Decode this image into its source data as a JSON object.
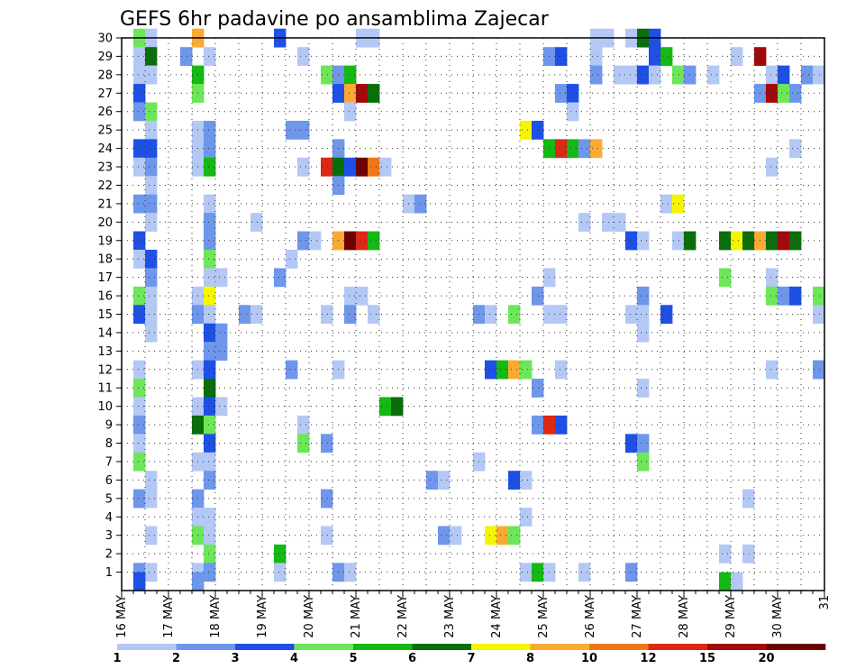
{
  "chart_data": {
    "type": "heatmap",
    "title": "GEFS 6hr padavine po ansamblima Zajecar",
    "xlabel": "",
    "ylabel": "",
    "x_ticks": [
      "16 MAY",
      "17 MAY",
      "18 MAY",
      "19 MAY",
      "20 MAY",
      "21 MAY",
      "22 MAY",
      "23 MAY",
      "24 MAY",
      "25 MAY",
      "26 MAY",
      "27 MAY",
      "28 MAY",
      "29 MAY",
      "30 MAY",
      "31"
    ],
    "y_ticks": [
      1,
      2,
      3,
      4,
      5,
      6,
      7,
      8,
      9,
      10,
      11,
      12,
      13,
      14,
      15,
      16,
      17,
      18,
      19,
      20,
      21,
      22,
      23,
      24,
      25,
      26,
      27,
      28,
      29,
      30
    ],
    "x_range_steps": [
      0,
      60
    ],
    "y_range_members": [
      0,
      30
    ],
    "colorbar": {
      "labels": [
        "1",
        "2",
        "3",
        "4",
        "5",
        "6",
        "7",
        "8",
        "10",
        "12",
        "15",
        "20"
      ],
      "colors": [
        "#b4c8f5",
        "#6e96eb",
        "#1e50e6",
        "#6ee65a",
        "#14b914",
        "#0a6e0a",
        "#f5f500",
        "#faaa32",
        "#f07814",
        "#dc2814",
        "#a00a0a",
        "#6e0000"
      ]
    },
    "cells_format": "[member, time_step_index (6h from 16 MAY 00z), class_index into colorbar.colors]",
    "cells": [
      [
        30,
        1,
        3
      ],
      [
        30,
        2,
        0
      ],
      [
        30,
        6,
        7
      ],
      [
        30,
        13,
        2
      ],
      [
        30,
        20,
        0
      ],
      [
        30,
        21,
        0
      ],
      [
        30,
        40,
        0
      ],
      [
        30,
        41,
        0
      ],
      [
        30,
        43,
        0
      ],
      [
        30,
        44,
        5
      ],
      [
        30,
        45,
        2
      ],
      [
        29,
        1,
        0
      ],
      [
        29,
        2,
        5
      ],
      [
        29,
        5,
        1
      ],
      [
        29,
        7,
        0
      ],
      [
        29,
        15,
        0
      ],
      [
        29,
        36,
        1
      ],
      [
        29,
        37,
        2
      ],
      [
        29,
        40,
        0
      ],
      [
        29,
        45,
        2
      ],
      [
        29,
        46,
        4
      ],
      [
        29,
        52,
        0
      ],
      [
        29,
        54,
        10
      ],
      [
        28,
        1,
        0
      ],
      [
        28,
        2,
        0
      ],
      [
        28,
        6,
        4
      ],
      [
        28,
        17,
        3
      ],
      [
        28,
        18,
        1
      ],
      [
        28,
        19,
        4
      ],
      [
        28,
        40,
        1
      ],
      [
        28,
        42,
        0
      ],
      [
        28,
        43,
        0
      ],
      [
        28,
        44,
        2
      ],
      [
        28,
        45,
        0
      ],
      [
        28,
        47,
        3
      ],
      [
        28,
        48,
        1
      ],
      [
        28,
        50,
        0
      ],
      [
        28,
        55,
        0
      ],
      [
        28,
        56,
        2
      ],
      [
        28,
        58,
        1
      ],
      [
        28,
        59,
        0
      ],
      [
        27,
        1,
        2
      ],
      [
        27,
        6,
        3
      ],
      [
        27,
        18,
        2
      ],
      [
        27,
        19,
        7
      ],
      [
        27,
        20,
        10
      ],
      [
        27,
        21,
        5
      ],
      [
        27,
        37,
        1
      ],
      [
        27,
        38,
        2
      ],
      [
        27,
        54,
        1
      ],
      [
        27,
        55,
        10
      ],
      [
        27,
        56,
        3
      ],
      [
        27,
        57,
        1
      ],
      [
        26,
        1,
        1
      ],
      [
        26,
        2,
        3
      ],
      [
        26,
        19,
        0
      ],
      [
        26,
        38,
        0
      ],
      [
        25,
        2,
        0
      ],
      [
        25,
        6,
        0
      ],
      [
        25,
        7,
        1
      ],
      [
        25,
        14,
        1
      ],
      [
        25,
        15,
        1
      ],
      [
        25,
        34,
        6
      ],
      [
        25,
        35,
        2
      ],
      [
        24,
        1,
        2
      ],
      [
        24,
        2,
        2
      ],
      [
        24,
        6,
        0
      ],
      [
        24,
        7,
        1
      ],
      [
        24,
        18,
        1
      ],
      [
        24,
        36,
        4
      ],
      [
        24,
        37,
        9
      ],
      [
        24,
        38,
        4
      ],
      [
        24,
        39,
        1
      ],
      [
        24,
        40,
        7
      ],
      [
        24,
        57,
        0
      ],
      [
        23,
        1,
        0
      ],
      [
        23,
        2,
        1
      ],
      [
        23,
        6,
        0
      ],
      [
        23,
        7,
        4
      ],
      [
        23,
        15,
        0
      ],
      [
        23,
        17,
        9
      ],
      [
        23,
        18,
        5
      ],
      [
        23,
        19,
        2
      ],
      [
        23,
        20,
        11
      ],
      [
        23,
        21,
        8
      ],
      [
        23,
        22,
        0
      ],
      [
        23,
        55,
        0
      ],
      [
        22,
        2,
        0
      ],
      [
        22,
        18,
        1
      ],
      [
        21,
        1,
        1
      ],
      [
        21,
        2,
        1
      ],
      [
        21,
        7,
        0
      ],
      [
        21,
        24,
        0
      ],
      [
        21,
        25,
        1
      ],
      [
        21,
        46,
        0
      ],
      [
        21,
        47,
        6
      ],
      [
        20,
        2,
        0
      ],
      [
        20,
        7,
        1
      ],
      [
        20,
        11,
        0
      ],
      [
        20,
        39,
        0
      ],
      [
        20,
        41,
        0
      ],
      [
        20,
        42,
        0
      ],
      [
        19,
        1,
        2
      ],
      [
        19,
        7,
        1
      ],
      [
        19,
        15,
        1
      ],
      [
        19,
        16,
        0
      ],
      [
        19,
        18,
        7
      ],
      [
        19,
        19,
        11
      ],
      [
        19,
        20,
        9
      ],
      [
        19,
        21,
        4
      ],
      [
        19,
        43,
        2
      ],
      [
        19,
        44,
        0
      ],
      [
        19,
        47,
        0
      ],
      [
        19,
        48,
        5
      ],
      [
        19,
        51,
        5
      ],
      [
        19,
        52,
        6
      ],
      [
        19,
        53,
        5
      ],
      [
        19,
        54,
        7
      ],
      [
        19,
        55,
        5
      ],
      [
        19,
        56,
        10
      ],
      [
        19,
        57,
        5
      ],
      [
        18,
        1,
        0
      ],
      [
        18,
        2,
        2
      ],
      [
        18,
        7,
        3
      ],
      [
        18,
        14,
        0
      ],
      [
        17,
        2,
        1
      ],
      [
        17,
        7,
        0
      ],
      [
        17,
        8,
        0
      ],
      [
        17,
        13,
        1
      ],
      [
        17,
        36,
        0
      ],
      [
        17,
        51,
        3
      ],
      [
        17,
        55,
        0
      ],
      [
        16,
        1,
        3
      ],
      [
        16,
        2,
        0
      ],
      [
        16,
        6,
        0
      ],
      [
        16,
        7,
        6
      ],
      [
        16,
        19,
        0
      ],
      [
        16,
        20,
        0
      ],
      [
        16,
        35,
        1
      ],
      [
        16,
        44,
        1
      ],
      [
        16,
        55,
        3
      ],
      [
        16,
        56,
        1
      ],
      [
        16,
        57,
        2
      ],
      [
        16,
        59,
        3
      ],
      [
        15,
        1,
        2
      ],
      [
        15,
        2,
        0
      ],
      [
        15,
        6,
        1
      ],
      [
        15,
        7,
        0
      ],
      [
        15,
        10,
        1
      ],
      [
        15,
        11,
        0
      ],
      [
        15,
        17,
        0
      ],
      [
        15,
        19,
        1
      ],
      [
        15,
        21,
        0
      ],
      [
        15,
        30,
        1
      ],
      [
        15,
        31,
        0
      ],
      [
        15,
        33,
        3
      ],
      [
        15,
        36,
        0
      ],
      [
        15,
        37,
        0
      ],
      [
        15,
        43,
        0
      ],
      [
        15,
        44,
        0
      ],
      [
        15,
        46,
        2
      ],
      [
        15,
        59,
        0
      ],
      [
        14,
        2,
        0
      ],
      [
        14,
        7,
        2
      ],
      [
        14,
        8,
        1
      ],
      [
        14,
        44,
        0
      ],
      [
        13,
        7,
        1
      ],
      [
        13,
        8,
        1
      ],
      [
        12,
        1,
        0
      ],
      [
        12,
        6,
        0
      ],
      [
        12,
        7,
        2
      ],
      [
        12,
        14,
        1
      ],
      [
        12,
        18,
        0
      ],
      [
        12,
        31,
        2
      ],
      [
        12,
        32,
        4
      ],
      [
        12,
        33,
        7
      ],
      [
        12,
        34,
        3
      ],
      [
        12,
        37,
        0
      ],
      [
        12,
        55,
        0
      ],
      [
        12,
        59,
        1
      ],
      [
        11,
        1,
        3
      ],
      [
        11,
        7,
        5
      ],
      [
        11,
        35,
        1
      ],
      [
        11,
        44,
        0
      ],
      [
        10,
        1,
        0
      ],
      [
        10,
        6,
        0
      ],
      [
        10,
        7,
        2
      ],
      [
        10,
        8,
        0
      ],
      [
        10,
        22,
        4
      ],
      [
        10,
        23,
        5
      ],
      [
        9,
        1,
        1
      ],
      [
        9,
        6,
        5
      ],
      [
        9,
        7,
        3
      ],
      [
        9,
        15,
        0
      ],
      [
        9,
        35,
        1
      ],
      [
        9,
        36,
        9
      ],
      [
        9,
        37,
        2
      ],
      [
        8,
        1,
        0
      ],
      [
        8,
        7,
        2
      ],
      [
        8,
        15,
        3
      ],
      [
        8,
        17,
        1
      ],
      [
        8,
        43,
        2
      ],
      [
        8,
        44,
        1
      ],
      [
        7,
        1,
        3
      ],
      [
        7,
        6,
        0
      ],
      [
        7,
        7,
        0
      ],
      [
        7,
        30,
        0
      ],
      [
        7,
        44,
        3
      ],
      [
        6,
        2,
        0
      ],
      [
        6,
        7,
        1
      ],
      [
        6,
        26,
        1
      ],
      [
        6,
        27,
        0
      ],
      [
        6,
        33,
        2
      ],
      [
        6,
        34,
        0
      ],
      [
        5,
        1,
        1
      ],
      [
        5,
        2,
        0
      ],
      [
        5,
        6,
        1
      ],
      [
        5,
        17,
        1
      ],
      [
        5,
        53,
        0
      ],
      [
        4,
        6,
        0
      ],
      [
        4,
        7,
        0
      ],
      [
        4,
        34,
        0
      ],
      [
        3,
        2,
        0
      ],
      [
        3,
        6,
        3
      ],
      [
        3,
        7,
        0
      ],
      [
        3,
        17,
        0
      ],
      [
        3,
        27,
        1
      ],
      [
        3,
        28,
        0
      ],
      [
        3,
        31,
        6
      ],
      [
        3,
        32,
        7
      ],
      [
        3,
        33,
        3
      ],
      [
        2,
        7,
        3
      ],
      [
        2,
        13,
        4
      ],
      [
        2,
        51,
        0
      ],
      [
        2,
        53,
        0
      ],
      [
        1,
        1,
        1
      ],
      [
        1,
        2,
        0
      ],
      [
        1,
        6,
        0
      ],
      [
        1,
        7,
        1
      ],
      [
        1,
        13,
        0
      ],
      [
        1,
        18,
        1
      ],
      [
        1,
        19,
        0
      ],
      [
        1,
        34,
        0
      ],
      [
        1,
        35,
        4
      ],
      [
        1,
        36,
        0
      ],
      [
        1,
        39,
        0
      ],
      [
        1,
        43,
        1
      ],
      [
        0.5,
        1,
        2
      ],
      [
        0.5,
        6,
        1
      ],
      [
        0.5,
        51,
        4
      ],
      [
        0.5,
        52,
        0
      ]
    ]
  }
}
